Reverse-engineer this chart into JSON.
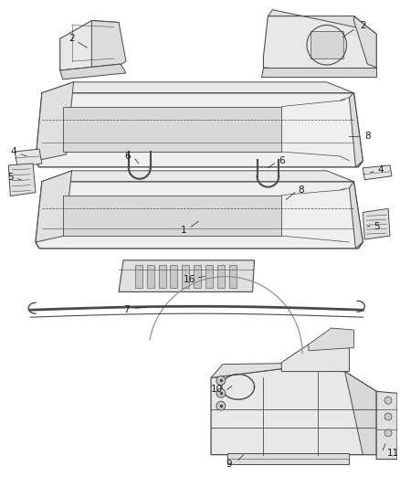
{
  "bg_color": "#ffffff",
  "line_color": "#4a4a4a",
  "label_color": "#1a1a1a",
  "fig_width": 4.38,
  "fig_height": 5.33,
  "dpi": 100
}
